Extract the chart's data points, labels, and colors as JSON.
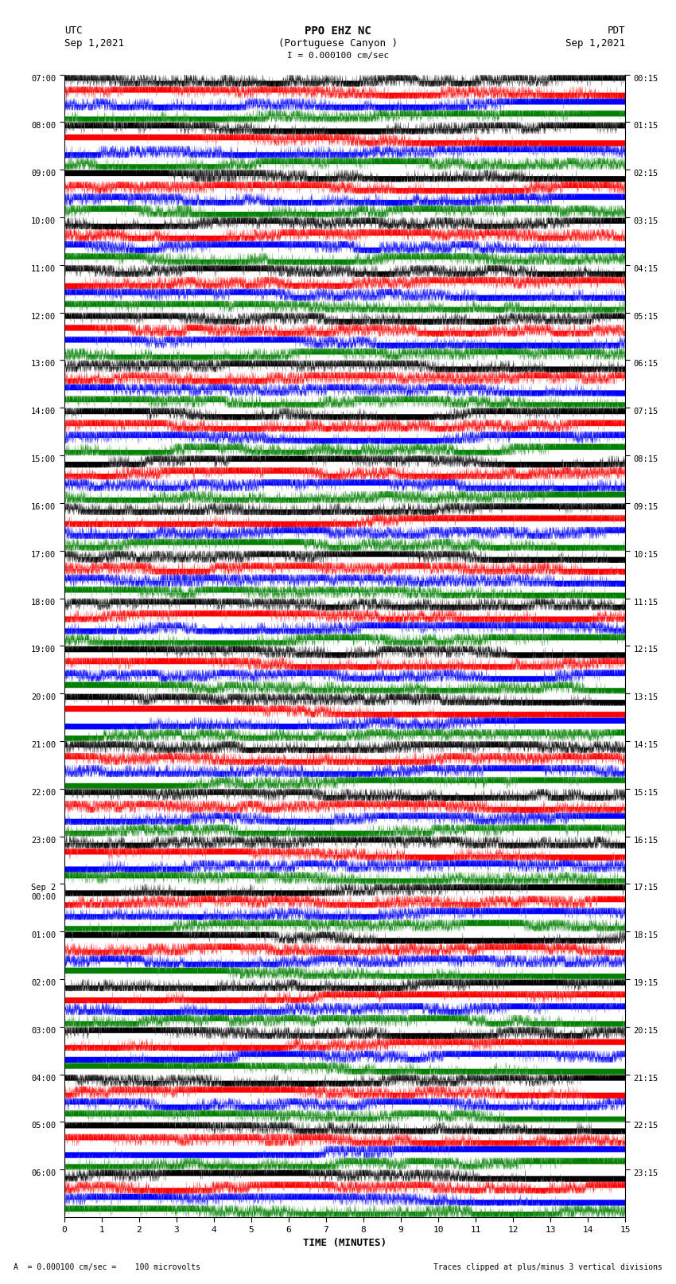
{
  "title_line1": "PPO EHZ NC",
  "title_line2": "(Portuguese Canyon )",
  "title_line3": "I = 0.000100 cm/sec",
  "utc_label": "UTC",
  "utc_date": "Sep 1,2021",
  "pdt_label": "PDT",
  "pdt_date": "Sep 1,2021",
  "xlabel": "TIME (MINUTES)",
  "footer_left": "A  = 0.000100 cm/sec =    100 microvolts",
  "footer_right": "Traces clipped at plus/minus 3 vertical divisions",
  "left_labels": [
    "07:00",
    "08:00",
    "09:00",
    "10:00",
    "11:00",
    "12:00",
    "13:00",
    "14:00",
    "15:00",
    "16:00",
    "17:00",
    "18:00",
    "19:00",
    "20:00",
    "21:00",
    "22:00",
    "23:00",
    "Sep 2\n00:00",
    "01:00",
    "02:00",
    "03:00",
    "04:00",
    "05:00",
    "06:00"
  ],
  "right_labels": [
    "00:15",
    "01:15",
    "02:15",
    "03:15",
    "04:15",
    "05:15",
    "06:15",
    "07:15",
    "08:15",
    "09:15",
    "10:15",
    "11:15",
    "12:15",
    "13:15",
    "14:15",
    "15:15",
    "16:15",
    "17:15",
    "18:15",
    "19:15",
    "20:15",
    "21:15",
    "22:15",
    "23:15"
  ],
  "num_rows": 24,
  "sub_traces_per_row": 4,
  "colors_cycle": [
    "black",
    "red",
    "blue",
    "green"
  ],
  "background_color": "white",
  "fig_width": 8.5,
  "fig_height": 16.13,
  "dpi": 100,
  "xticks": [
    0,
    1,
    2,
    3,
    4,
    5,
    6,
    7,
    8,
    9,
    10,
    11,
    12,
    13,
    14,
    15
  ]
}
